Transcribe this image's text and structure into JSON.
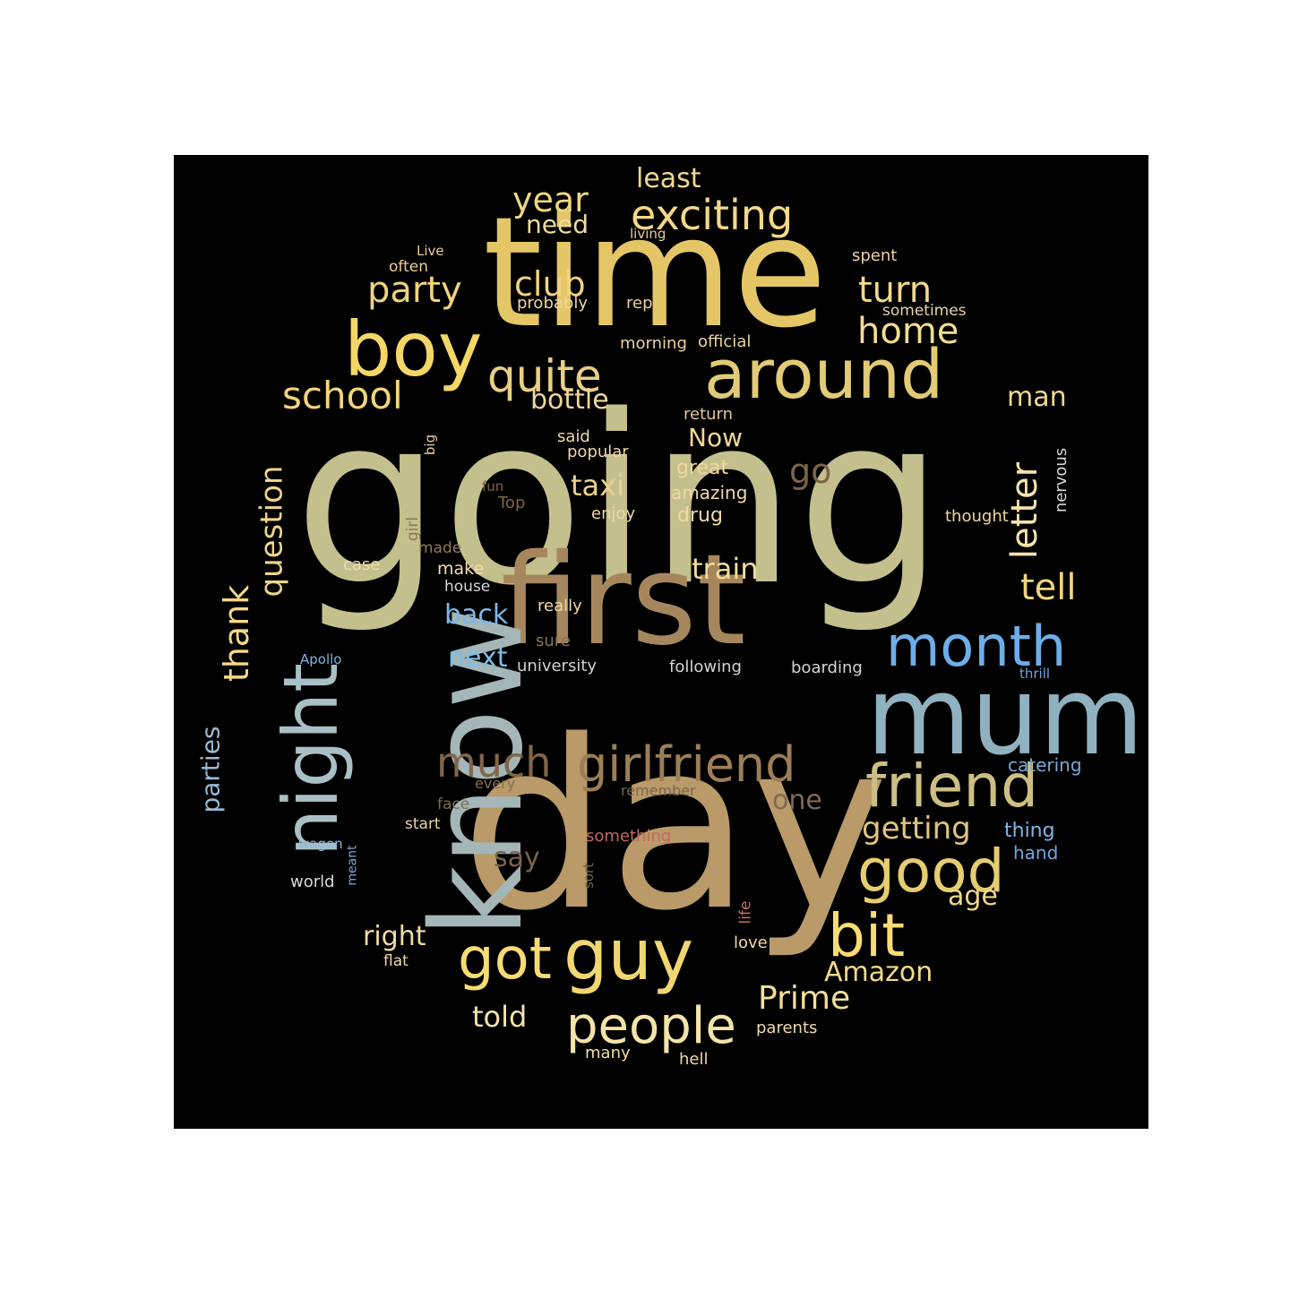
{
  "words": [
    {
      "text": "going",
      "color": "#c4c08e"
    },
    {
      "text": "day",
      "color": "#b99a68"
    },
    {
      "text": "time",
      "color": "#e4c666"
    },
    {
      "text": "first",
      "color": "#a6875d"
    },
    {
      "text": "know",
      "color": "#a4b6b7"
    },
    {
      "text": "mum",
      "color": "#90b2c0"
    },
    {
      "text": "around",
      "color": "#e2cb76"
    },
    {
      "text": "boy",
      "color": "#f4d766"
    },
    {
      "text": "night",
      "color": "#a9c0c6"
    },
    {
      "text": "friend",
      "color": "#cdbf83"
    },
    {
      "text": "guy",
      "color": "#f0d771"
    },
    {
      "text": "got",
      "color": "#f7dc74"
    },
    {
      "text": "good",
      "color": "#e6cd70"
    },
    {
      "text": "month",
      "color": "#6daee8"
    },
    {
      "text": "girlfriend",
      "color": "#9c7e57"
    },
    {
      "text": "people",
      "color": "#f4e4a6"
    },
    {
      "text": "bit",
      "color": "#f9dc74"
    },
    {
      "text": "quite",
      "color": "#e9cf84"
    },
    {
      "text": "exciting",
      "color": "#f3d886"
    },
    {
      "text": "much",
      "color": "#806648"
    },
    {
      "text": "party",
      "color": "#f0d37c"
    },
    {
      "text": "school",
      "color": "#f2d47a"
    },
    {
      "text": "letter",
      "color": "#f5e3ad"
    },
    {
      "text": "turn",
      "color": "#f2d888"
    },
    {
      "text": "year",
      "color": "#f0d77e"
    },
    {
      "text": "club",
      "color": "#f0d280"
    },
    {
      "text": "home",
      "color": "#f3dd92"
    },
    {
      "text": "tell",
      "color": "#f2d67e"
    },
    {
      "text": "thank",
      "color": "#f5d883"
    },
    {
      "text": "question",
      "color": "#f0d48c"
    },
    {
      "text": "taxi",
      "color": "#ebd28a"
    },
    {
      "text": "train",
      "color": "#f3dd99"
    },
    {
      "text": "getting",
      "color": "#dfc57f"
    },
    {
      "text": "Prime",
      "color": "#f4df97"
    },
    {
      "text": "go",
      "color": "#7b6547"
    },
    {
      "text": "bottle",
      "color": "#efd79b"
    },
    {
      "text": "man",
      "color": "#f2d98e"
    },
    {
      "text": "need",
      "color": "#f0dca0"
    },
    {
      "text": "least",
      "color": "#f3d990"
    },
    {
      "text": "Amazon",
      "color": "#f3d98b"
    },
    {
      "text": "told",
      "color": "#f4e3b0"
    },
    {
      "text": "right",
      "color": "#f1dca2"
    },
    {
      "text": "parties",
      "color": "#96bcd6"
    },
    {
      "text": "Now",
      "color": "#f2d890"
    },
    {
      "text": "one",
      "color": "#7f6a50"
    },
    {
      "text": "age",
      "color": "#f0d78a"
    },
    {
      "text": "back",
      "color": "#80b6e4"
    },
    {
      "text": "next",
      "color": "#7bbde9"
    },
    {
      "text": "say",
      "color": "#7a6449"
    },
    {
      "text": "great",
      "color": "#f0d89a"
    },
    {
      "text": "drug",
      "color": "#f0dba2"
    },
    {
      "text": "catering",
      "color": "#7ba9d6"
    },
    {
      "text": "thing",
      "color": "#7db6ea"
    },
    {
      "text": "hand",
      "color": "#6ea7e0"
    },
    {
      "text": "nervous",
      "color": "#d7d7d7"
    },
    {
      "text": "thought",
      "color": "#f1d99d"
    },
    {
      "text": "amazing",
      "color": "#f0d8a2"
    },
    {
      "text": "enjoy",
      "color": "#eed7a0"
    },
    {
      "text": "popular",
      "color": "#ebd7a6"
    },
    {
      "text": "said",
      "color": "#eed9a8"
    },
    {
      "text": "return",
      "color": "#e1c695"
    },
    {
      "text": "morning",
      "color": "#ebd29c"
    },
    {
      "text": "official",
      "color": "#ebd5a1"
    },
    {
      "text": "sometimes",
      "color": "#e8d4a8"
    },
    {
      "text": "spent",
      "color": "#ead3a2"
    },
    {
      "text": "probably",
      "color": "#eed7a0"
    },
    {
      "text": "rep",
      "color": "#ead19c"
    },
    {
      "text": "often",
      "color": "#eacf97"
    },
    {
      "text": "Live",
      "color": "#eccf97"
    },
    {
      "text": "living",
      "color": "#e5cb98"
    },
    {
      "text": "big",
      "color": "#e8d19f"
    },
    {
      "text": "fun",
      "color": "#7d6548"
    },
    {
      "text": "Top",
      "color": "#7c6646"
    },
    {
      "text": "girl",
      "color": "#8d7655"
    },
    {
      "text": "made",
      "color": "#8f7a5c"
    },
    {
      "text": "case",
      "color": "#f1dcab"
    },
    {
      "text": "make",
      "color": "#f2dda9"
    },
    {
      "text": "house",
      "color": "#d8d8d8"
    },
    {
      "text": "really",
      "color": "#f0daa8"
    },
    {
      "text": "sure",
      "color": "#8b7453"
    },
    {
      "text": "university",
      "color": "#d1d1d1"
    },
    {
      "text": "following",
      "color": "#d4d4d4"
    },
    {
      "text": "boarding",
      "color": "#d4d4d4"
    },
    {
      "text": "thrill",
      "color": "#6fa7dc"
    },
    {
      "text": "Apollo",
      "color": "#7db2e2"
    },
    {
      "text": "every",
      "color": "#876f52"
    },
    {
      "text": "face",
      "color": "#806a4d"
    },
    {
      "text": "start",
      "color": "#e9d6a8"
    },
    {
      "text": "remember",
      "color": "#7a6650"
    },
    {
      "text": "something",
      "color": "#c06a64"
    },
    {
      "text": "wagon",
      "color": "#8db8de"
    },
    {
      "text": "meant",
      "color": "#7da8d4"
    },
    {
      "text": "world",
      "color": "#d9d9d9"
    },
    {
      "text": "sort",
      "color": "#7a6448"
    },
    {
      "text": "life",
      "color": "#c66c66"
    },
    {
      "text": "love",
      "color": "#f0daa4"
    },
    {
      "text": "flat",
      "color": "#efd9a6"
    },
    {
      "text": "parents",
      "color": "#efd9a8"
    },
    {
      "text": "many",
      "color": "#f0dcac"
    },
    {
      "text": "hell",
      "color": "#efd8a4"
    }
  ]
}
